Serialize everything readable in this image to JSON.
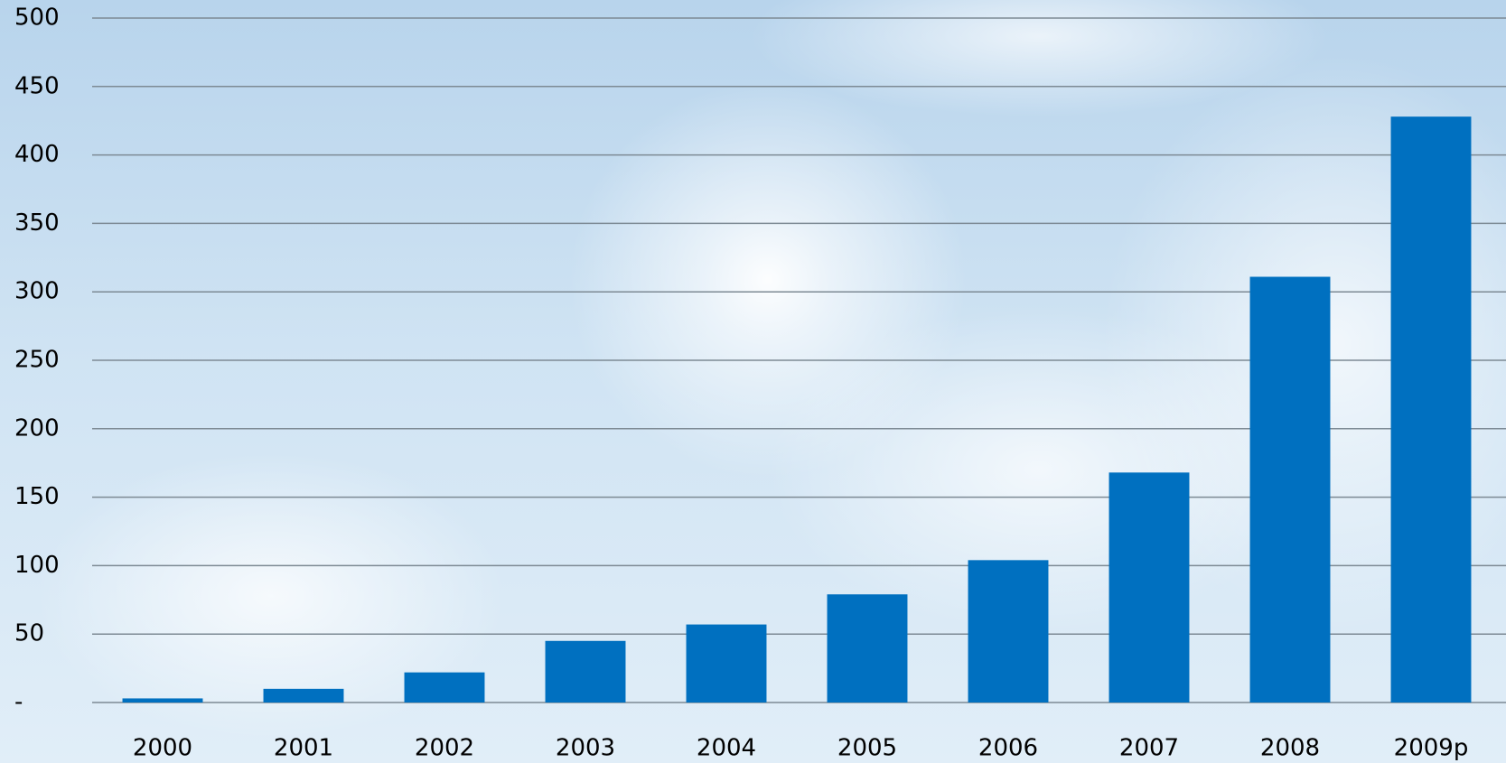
{
  "chart_data": {
    "type": "bar",
    "categories": [
      "2000",
      "2001",
      "2002",
      "2003",
      "2004",
      "2005",
      "2006",
      "2007",
      "2008",
      "2009p"
    ],
    "values": [
      3,
      10,
      22,
      45,
      57,
      79,
      104,
      168,
      311,
      428
    ],
    "color": "#0070c0",
    "ylim": [
      0,
      500
    ],
    "yticks": [
      {
        "value": 0,
        "label": "-"
      },
      50,
      100,
      150,
      200,
      250,
      300,
      350,
      400,
      450,
      500
    ],
    "grid": true
  }
}
